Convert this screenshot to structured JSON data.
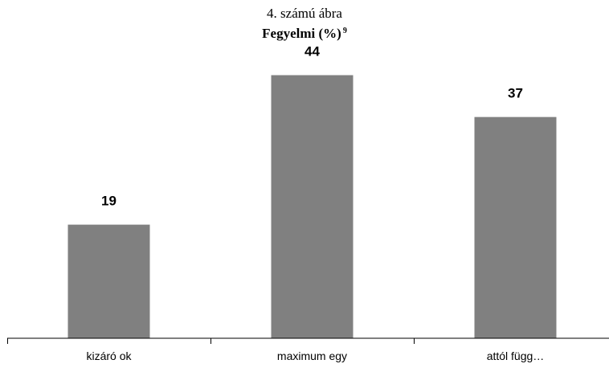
{
  "figure": {
    "caption_number": "4. számú ábra",
    "title": "Fegyelmi (%)",
    "footnote_marker": "9"
  },
  "chart_data": {
    "type": "bar",
    "title": "Fegyelmi (%)",
    "categories": [
      "kizáró ok",
      "maximum egy",
      "attól függ…"
    ],
    "values": [
      19,
      44,
      37
    ],
    "data_labels": [
      "19",
      "44",
      "37"
    ],
    "xlabel": "",
    "ylabel": "",
    "ylim": [
      0,
      52
    ],
    "grid": false,
    "legend": "none",
    "colors": {
      "bar": "#808080"
    }
  }
}
